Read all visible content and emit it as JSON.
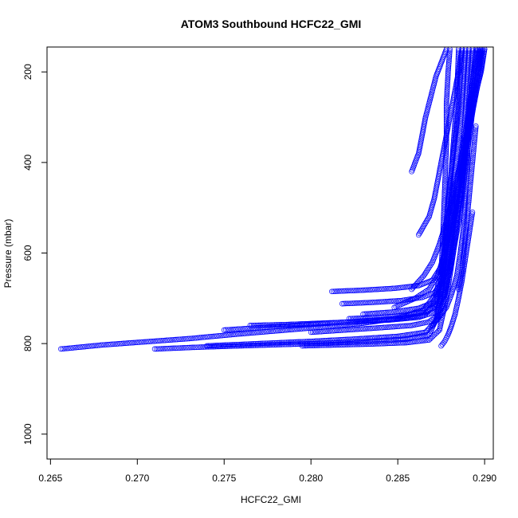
{
  "chart_data": {
    "type": "scatter",
    "title": "ATOM3 Southbound HCFC22_GMI",
    "xlabel": "HCFC22_GMI",
    "ylabel": "Pressure (mbar)",
    "xlim": [
      0.2648,
      0.2905
    ],
    "ylim": [
      1055,
      145
    ],
    "y_reversed": true,
    "x_ticks": [
      "0.265",
      "0.270",
      "0.275",
      "0.280",
      "0.285",
      "0.290"
    ],
    "y_ticks": [
      "200",
      "400",
      "600",
      "800",
      "1000"
    ],
    "grid": false,
    "legend": "none",
    "marker": "open-circle",
    "color": "#0000ff",
    "profiles": [
      {
        "x": [
          0.2656,
          0.268,
          0.2705,
          0.273,
          0.2755,
          0.278,
          0.2805,
          0.283,
          0.285,
          0.2865,
          0.2872,
          0.2875,
          0.2876,
          0.2877,
          0.2878,
          0.2878,
          0.2879,
          0.288
        ],
        "y": [
          812,
          803,
          796,
          789,
          780,
          772,
          764,
          755,
          744,
          725,
          690,
          640,
          560,
          460,
          360,
          270,
          200,
          150
        ]
      },
      {
        "x": [
          0.271,
          0.2735,
          0.276,
          0.2785,
          0.281,
          0.2835,
          0.2855,
          0.2868,
          0.2873,
          0.2876,
          0.2878,
          0.288,
          0.2882,
          0.2884,
          0.2885
        ],
        "y": [
          812,
          808,
          805,
          802,
          799,
          795,
          790,
          780,
          740,
          660,
          560,
          460,
          360,
          260,
          150
        ]
      },
      {
        "x": [
          0.274,
          0.277,
          0.28,
          0.2825,
          0.285,
          0.2866,
          0.2872,
          0.2875,
          0.2877,
          0.2879,
          0.2882,
          0.2885,
          0.2887
        ],
        "y": [
          805,
          800,
          795,
          790,
          784,
          775,
          750,
          680,
          580,
          480,
          380,
          280,
          150
        ]
      },
      {
        "x": [
          0.275,
          0.277,
          0.279,
          0.281,
          0.283,
          0.285,
          0.2865,
          0.2872,
          0.2876,
          0.2879,
          0.2882,
          0.2886,
          0.2889
        ],
        "y": [
          770,
          765,
          760,
          755,
          750,
          745,
          738,
          710,
          640,
          540,
          440,
          320,
          150
        ]
      },
      {
        "x": [
          0.2765,
          0.2785,
          0.2805,
          0.2825,
          0.2845,
          0.2862,
          0.2872,
          0.2877,
          0.288,
          0.2884,
          0.2888,
          0.2891
        ],
        "y": [
          760,
          758,
          755,
          752,
          748,
          742,
          730,
          690,
          600,
          480,
          350,
          150
        ]
      },
      {
        "x": [
          0.2795,
          0.2815,
          0.2835,
          0.2855,
          0.2868,
          0.2874,
          0.2878,
          0.2882,
          0.2886,
          0.289,
          0.2893
        ],
        "y": [
          805,
          803,
          801,
          798,
          792,
          770,
          700,
          600,
          480,
          320,
          150
        ]
      },
      {
        "x": [
          0.28,
          0.282,
          0.284,
          0.2858,
          0.2868,
          0.2874,
          0.2878,
          0.2882,
          0.2887,
          0.2891,
          0.2895
        ],
        "y": [
          775,
          770,
          765,
          760,
          752,
          735,
          680,
          580,
          450,
          300,
          150
        ]
      },
      {
        "x": [
          0.2812,
          0.283,
          0.2848,
          0.2862,
          0.287,
          0.2875,
          0.2879,
          0.2883,
          0.2888,
          0.2892,
          0.2896
        ],
        "y": [
          685,
          682,
          678,
          672,
          660,
          630,
          560,
          470,
          360,
          250,
          150
        ]
      },
      {
        "x": [
          0.2818,
          0.2836,
          0.2852,
          0.2864,
          0.2871,
          0.2876,
          0.288,
          0.2884,
          0.2889,
          0.2893,
          0.2897
        ],
        "y": [
          712,
          709,
          705,
          698,
          688,
          660,
          590,
          490,
          370,
          250,
          150
        ]
      },
      {
        "x": [
          0.2822,
          0.284,
          0.2856,
          0.2866,
          0.2872,
          0.2877,
          0.2881,
          0.2886,
          0.289,
          0.2894,
          0.2898
        ],
        "y": [
          745,
          742,
          738,
          730,
          718,
          690,
          620,
          510,
          380,
          260,
          150
        ]
      },
      {
        "x": [
          0.283,
          0.2848,
          0.2862,
          0.287,
          0.2875,
          0.2879,
          0.2883,
          0.2887,
          0.2891,
          0.2895,
          0.2899
        ],
        "y": [
          735,
          730,
          722,
          710,
          680,
          620,
          540,
          440,
          330,
          230,
          150
        ]
      },
      {
        "x": [
          0.2848,
          0.286,
          0.2868,
          0.2873,
          0.2877,
          0.2881,
          0.2885,
          0.2889,
          0.2893,
          0.2897,
          0.29
        ],
        "y": [
          720,
          700,
          680,
          650,
          600,
          530,
          450,
          370,
          290,
          210,
          150
        ]
      },
      {
        "x": [
          0.2858,
          0.2865,
          0.287,
          0.2874,
          0.2878,
          0.2882,
          0.2886,
          0.289,
          0.2894,
          0.2898,
          0.29
        ],
        "y": [
          680,
          650,
          620,
          580,
          530,
          470,
          400,
          330,
          260,
          200,
          150
        ]
      },
      {
        "x": [
          0.2862,
          0.2868,
          0.2871,
          0.2873,
          0.2875,
          0.2877,
          0.2879,
          0.2881,
          0.2883,
          0.2885,
          0.2887
        ],
        "y": [
          560,
          520,
          480,
          440,
          400,
          360,
          320,
          280,
          240,
          200,
          150
        ]
      },
      {
        "x": [
          0.2858,
          0.2862,
          0.2864,
          0.2866,
          0.2868,
          0.287,
          0.2872,
          0.2874,
          0.2876,
          0.2878
        ],
        "y": [
          420,
          380,
          340,
          300,
          270,
          240,
          210,
          190,
          170,
          150
        ]
      },
      {
        "x": [
          0.287,
          0.2874,
          0.2878,
          0.2881,
          0.2884,
          0.2886,
          0.2888,
          0.2889,
          0.289,
          0.2891
        ],
        "y": [
          760,
          740,
          720,
          690,
          650,
          600,
          540,
          470,
          400,
          330
        ]
      },
      {
        "x": [
          0.2875,
          0.2877,
          0.2879,
          0.2881,
          0.2883,
          0.2885,
          0.2887,
          0.2889,
          0.2891,
          0.2893
        ],
        "y": [
          805,
          795,
          780,
          760,
          735,
          700,
          660,
          610,
          560,
          510
        ]
      },
      {
        "x": [
          0.2885,
          0.2887,
          0.2888,
          0.2889,
          0.289,
          0.2891,
          0.2892,
          0.2893,
          0.2894,
          0.2895
        ],
        "y": [
          680,
          640,
          600,
          560,
          520,
          480,
          440,
          400,
          360,
          320
        ]
      }
    ]
  }
}
